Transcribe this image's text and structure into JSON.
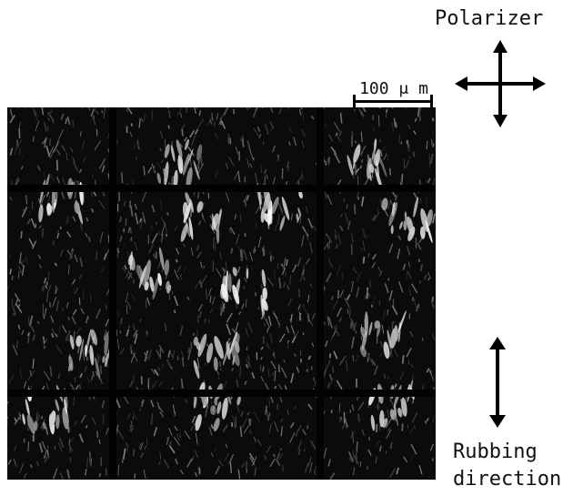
{
  "figure": {
    "scale_bar_label": "100 μ m",
    "polarizer_label": "Polarizer",
    "rubbing_label_line1": "Rubbing",
    "rubbing_label_line2": "direction"
  },
  "icons": {
    "polarizer_arrows": "four-way-cross-arrow-icon",
    "rubbing_arrow": "double-headed-vertical-arrow-icon"
  },
  "colors": {
    "background": "#ffffff",
    "micrograph_background": "#0b0b0b",
    "bright_features": "#e8e8e8",
    "grid_lines": "#000000"
  }
}
